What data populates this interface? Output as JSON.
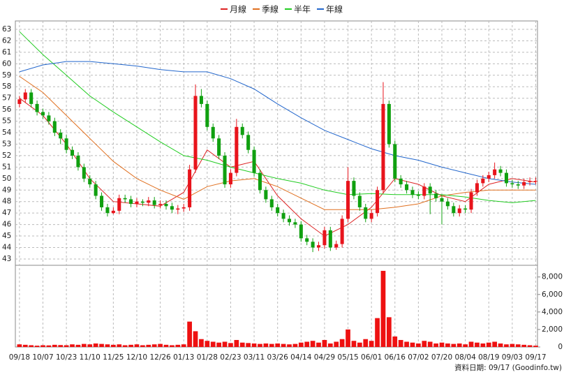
{
  "chart_data": {
    "type": "candlestick",
    "categories": [
      "09/18",
      null,
      null,
      null,
      "10/07",
      null,
      null,
      null,
      "10/23",
      null,
      null,
      null,
      "11/10",
      null,
      null,
      null,
      "11/25",
      null,
      null,
      null,
      "12/10",
      null,
      null,
      null,
      "12/26",
      null,
      null,
      null,
      "01/13",
      null,
      null,
      null,
      "01/28",
      null,
      null,
      null,
      "02/23",
      null,
      null,
      null,
      "03/11",
      null,
      null,
      null,
      "03/26",
      null,
      null,
      null,
      "04/14",
      null,
      null,
      null,
      "04/29",
      null,
      null,
      null,
      "05/15",
      null,
      null,
      null,
      "06/01",
      null,
      null,
      null,
      "06/16",
      null,
      null,
      null,
      "07/02",
      null,
      null,
      null,
      "07/20",
      null,
      null,
      null,
      "08/04",
      null,
      null,
      null,
      "08/19",
      null,
      null,
      null,
      "09/03",
      null,
      null,
      null,
      "09/17"
    ],
    "ohlc": [
      [
        56.5,
        57.2,
        56.2,
        56.9
      ],
      [
        56.9,
        57.8,
        56.6,
        57.5
      ],
      [
        57.5,
        57.8,
        56.2,
        56.5
      ],
      [
        56.5,
        56.8,
        55.5,
        55.8
      ],
      [
        55.8,
        56.1,
        55.2,
        55.5
      ],
      [
        55.5,
        55.8,
        54.7,
        55
      ],
      [
        55,
        55.3,
        53.7,
        54
      ],
      [
        54,
        54.3,
        53,
        53.5
      ],
      [
        53.5,
        53.8,
        52.2,
        52.5
      ],
      [
        52.5,
        52.8,
        51.7,
        52
      ],
      [
        52,
        52.3,
        50.7,
        51
      ],
      [
        51,
        51.3,
        49.7,
        50
      ],
      [
        50,
        50.3,
        49.2,
        49.5
      ],
      [
        49.5,
        49.8,
        48.2,
        48.5
      ],
      [
        48.5,
        48.8,
        47.2,
        47.5
      ],
      [
        47.5,
        47.8,
        46.7,
        47
      ],
      [
        47,
        47.5,
        46.9,
        47.2
      ],
      [
        47.2,
        48.6,
        46.9,
        48.3
      ],
      [
        48.3,
        48.6,
        47.9,
        48.2
      ],
      [
        48.2,
        48.5,
        47.5,
        47.8
      ],
      [
        47.8,
        48.3,
        47.5,
        48
      ],
      [
        48,
        48.2,
        47.6,
        47.9
      ],
      [
        47.9,
        48.4,
        47.6,
        48.1
      ],
      [
        48.1,
        48.4,
        47.4,
        47.7
      ],
      [
        47.7,
        48.1,
        47.4,
        47.8
      ],
      [
        47.8,
        48.1,
        47.3,
        47.6
      ],
      [
        47.6,
        47.9,
        47,
        47.3
      ],
      [
        47.3,
        47.7,
        46.9,
        47.4
      ],
      [
        47.4,
        47.8,
        47.1,
        47.5
      ],
      [
        47.5,
        51.2,
        47.2,
        50.8
      ],
      [
        50.8,
        58.2,
        50.5,
        57.2
      ],
      [
        57.2,
        57.8,
        56.2,
        56.5
      ],
      [
        56.5,
        56.8,
        54.2,
        54.5
      ],
      [
        54.5,
        54.8,
        53.2,
        53.5
      ],
      [
        53.5,
        53.8,
        51.7,
        52
      ],
      [
        52,
        52.3,
        49.2,
        49.5
      ],
      [
        49.5,
        50.8,
        49.2,
        50.5
      ],
      [
        50.5,
        55.2,
        50.2,
        54.5
      ],
      [
        54.5,
        54.8,
        53.5,
        53.8
      ],
      [
        53.8,
        54.1,
        52.2,
        52.5
      ],
      [
        52.5,
        52.8,
        50.2,
        50.5
      ],
      [
        50.5,
        50.8,
        48.7,
        49
      ],
      [
        49,
        49.3,
        47.9,
        48.2
      ],
      [
        48.2,
        48.5,
        47.2,
        47.5
      ],
      [
        47.5,
        47.8,
        46.7,
        47
      ],
      [
        47,
        47.3,
        46.2,
        46.5
      ],
      [
        46.5,
        46.8,
        45.9,
        46.2
      ],
      [
        46.2,
        46.5,
        45.7,
        46
      ],
      [
        46,
        46.3,
        44.5,
        44.8
      ],
      [
        44.8,
        45.1,
        44.2,
        44.5
      ],
      [
        44.5,
        44.8,
        43.6,
        44
      ],
      [
        44,
        44.5,
        43.7,
        44.2
      ],
      [
        44.2,
        45.8,
        43.9,
        45.5
      ],
      [
        45.5,
        45.8,
        43.7,
        44
      ],
      [
        44,
        44.6,
        43.8,
        44.3
      ],
      [
        44.3,
        46.8,
        44,
        46.5
      ],
      [
        46.5,
        51,
        46.2,
        49.8
      ],
      [
        49.8,
        50.1,
        48.2,
        48.5
      ],
      [
        48.5,
        48.8,
        47.2,
        47.5
      ],
      [
        47.5,
        47.8,
        46.2,
        46.5
      ],
      [
        46.5,
        47.3,
        46.2,
        47
      ],
      [
        47,
        49.3,
        46.7,
        49
      ],
      [
        49,
        58.4,
        48.7,
        56.5
      ],
      [
        56.5,
        56.8,
        52.7,
        53
      ],
      [
        53,
        53.3,
        49.7,
        50
      ],
      [
        50,
        50.3,
        49.2,
        49.5
      ],
      [
        49.5,
        49.8,
        48.7,
        49
      ],
      [
        49,
        49.3,
        48.3,
        48.6
      ],
      [
        48.6,
        48.9,
        48.2,
        48.5
      ],
      [
        48.5,
        49.6,
        48.2,
        49.3
      ],
      [
        49.3,
        49.6,
        46.9,
        48.7
      ],
      [
        48.7,
        49,
        48,
        48.3
      ],
      [
        48.3,
        48.6,
        46,
        48
      ],
      [
        48,
        48.3,
        47.3,
        47.6
      ],
      [
        47.6,
        47.9,
        46.7,
        47
      ],
      [
        47,
        47.7,
        46.7,
        47.4
      ],
      [
        47.4,
        47.7,
        47,
        47.3
      ],
      [
        47.3,
        49.1,
        47,
        48.8
      ],
      [
        48.8,
        49.9,
        48.5,
        49.6
      ],
      [
        49.6,
        50.3,
        49.3,
        50
      ],
      [
        50,
        50.6,
        49.7,
        50.3
      ],
      [
        50.3,
        51.4,
        50,
        50.8
      ],
      [
        50.8,
        51.1,
        50.2,
        50.5
      ],
      [
        50.5,
        50.8,
        49.3,
        49.6
      ],
      [
        49.6,
        49.9,
        49.2,
        49.5
      ],
      [
        49.5,
        49.8,
        49.1,
        49.4
      ],
      [
        49.4,
        50,
        49.1,
        49.7
      ],
      [
        49.7,
        50.1,
        49.4,
        49.8
      ],
      [
        49.8,
        50.1,
        49.5,
        49.8
      ]
    ],
    "up_color": "#e8141c",
    "down_color": "#10a010",
    "volume": {
      "color": "#ee1111",
      "axis": "y2",
      "values": [
        300,
        250,
        200,
        150,
        200,
        180,
        250,
        220,
        200,
        300,
        250,
        350,
        300,
        400,
        350,
        300,
        250,
        300,
        200,
        250,
        300,
        200,
        250,
        300,
        350,
        250,
        200,
        250,
        300,
        2900,
        1800,
        900,
        700,
        600,
        500,
        600,
        450,
        800,
        500,
        450,
        400,
        350,
        400,
        350,
        400,
        350,
        300,
        350,
        500,
        600,
        700,
        500,
        800,
        400,
        600,
        900,
        2000,
        700,
        500,
        900,
        700,
        3300,
        8700,
        3400,
        1200,
        800,
        600,
        500,
        400,
        700,
        600,
        400,
        500,
        400,
        350,
        400,
        300,
        600,
        500,
        400,
        500,
        600,
        400,
        300,
        350,
        300,
        250,
        200,
        150
      ]
    },
    "series": [
      {
        "name": "月線",
        "color": "#dd2222",
        "x": [
          0,
          4,
          8,
          12,
          16,
          20,
          24,
          28,
          32,
          36,
          40,
          44,
          48,
          52,
          56,
          60,
          64,
          68,
          72,
          76,
          80,
          84,
          88
        ],
        "values": [
          57.0,
          55.5,
          53.0,
          50.0,
          48.0,
          47.8,
          47.6,
          48.8,
          52.5,
          51.0,
          51.5,
          48.5,
          46.5,
          45.0,
          46.0,
          47.5,
          50.0,
          49.5,
          48.5,
          48.0,
          49.5,
          50.0,
          49.7
        ]
      },
      {
        "name": "季線",
        "color": "#e07020",
        "x": [
          0,
          4,
          8,
          12,
          16,
          20,
          24,
          28,
          32,
          36,
          40,
          44,
          48,
          52,
          56,
          60,
          64,
          68,
          72,
          76,
          80,
          84,
          88
        ],
        "values": [
          58.9,
          57.5,
          55.5,
          53.5,
          51.5,
          50.0,
          49.0,
          48.2,
          49.3,
          49.8,
          50.0,
          49.3,
          48.3,
          47.3,
          47.3,
          47.3,
          47.5,
          47.8,
          48.5,
          48.8,
          49.0,
          49.0,
          49.0
        ]
      },
      {
        "name": "半年",
        "color": "#22cc22",
        "x": [
          0,
          4,
          8,
          12,
          16,
          20,
          24,
          28,
          32,
          36,
          40,
          44,
          48,
          52,
          56,
          60,
          64,
          68,
          72,
          76,
          80,
          84,
          88
        ],
        "values": [
          62.8,
          60.8,
          59.0,
          57.2,
          55.8,
          54.5,
          53.2,
          52.0,
          51.6,
          51.0,
          50.5,
          50.0,
          49.6,
          49.0,
          48.6,
          48.7,
          48.6,
          48.6,
          48.6,
          48.4,
          48.1,
          47.9,
          48.1
        ]
      },
      {
        "name": "年線",
        "color": "#2266cc",
        "x": [
          0,
          4,
          8,
          12,
          16,
          20,
          24,
          28,
          32,
          36,
          40,
          44,
          48,
          52,
          56,
          60,
          64,
          68,
          72,
          76,
          80,
          84,
          88
        ],
        "values": [
          59.3,
          59.9,
          60.2,
          60.2,
          60.0,
          59.8,
          59.5,
          59.3,
          59.3,
          58.7,
          57.8,
          56.5,
          55.3,
          54.2,
          53.4,
          52.6,
          52.0,
          51.6,
          51.0,
          50.5,
          50.0,
          49.7,
          49.5
        ]
      }
    ],
    "xlim": [
      -0.7,
      88.3
    ],
    "ylim": [
      42.45,
      63.73
    ],
    "yticks": [
      43,
      44,
      45,
      46,
      47,
      48,
      49,
      50,
      51,
      52,
      53,
      54,
      55,
      56,
      57,
      58,
      59,
      60,
      61,
      62,
      63
    ],
    "y2lim": [
      0,
      9333
    ],
    "y2ticks": [
      0,
      {
        "value": 2000,
        "label": "2,000"
      },
      {
        "value": 4000,
        "label": "4,000"
      },
      {
        "value": 6000,
        "label": "6,000"
      },
      {
        "value": 8000,
        "label": "8,000"
      }
    ],
    "grid": true,
    "legend": "top",
    "note": "資料日期: 09/17  (Goodinfo.tw)"
  }
}
